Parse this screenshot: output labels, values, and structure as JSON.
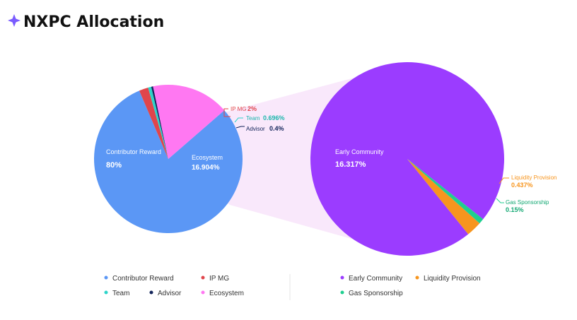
{
  "header": {
    "title": "NXPC Allocation",
    "icon": "sparkle-icon",
    "icon_colors": [
      "#e24a8d",
      "#6a5cff"
    ]
  },
  "chart_data": [
    {
      "type": "pie",
      "series": [
        {
          "label": "Contributor Reward",
          "value": 80,
          "value_label": "80%",
          "color": "#5b97f5"
        },
        {
          "label": "IP MG",
          "value": 2,
          "value_label": "2%",
          "color": "#e0454b"
        },
        {
          "label": "Team",
          "value": 0.696,
          "value_label": "0.696%",
          "color": "#2dd4c9"
        },
        {
          "label": "Advisor",
          "value": 0.4,
          "value_label": "0.4%",
          "color": "#12245a"
        },
        {
          "label": "Ecosystem",
          "value": 16.904,
          "value_label": "16.904%",
          "color": "#ff78f2"
        }
      ]
    },
    {
      "type": "pie",
      "series": [
        {
          "label": "Early Community",
          "value": 16.317,
          "value_label": "16.317%",
          "color": "#9b3cff"
        },
        {
          "label": "Liquidity Provision",
          "value": 0.437,
          "value_label": "0.437%",
          "color": "#f7951e"
        },
        {
          "label": "Gas Sponsorship",
          "value": 0.15,
          "value_label": "0.15%",
          "color": "#1fcf90"
        }
      ]
    }
  ]
}
